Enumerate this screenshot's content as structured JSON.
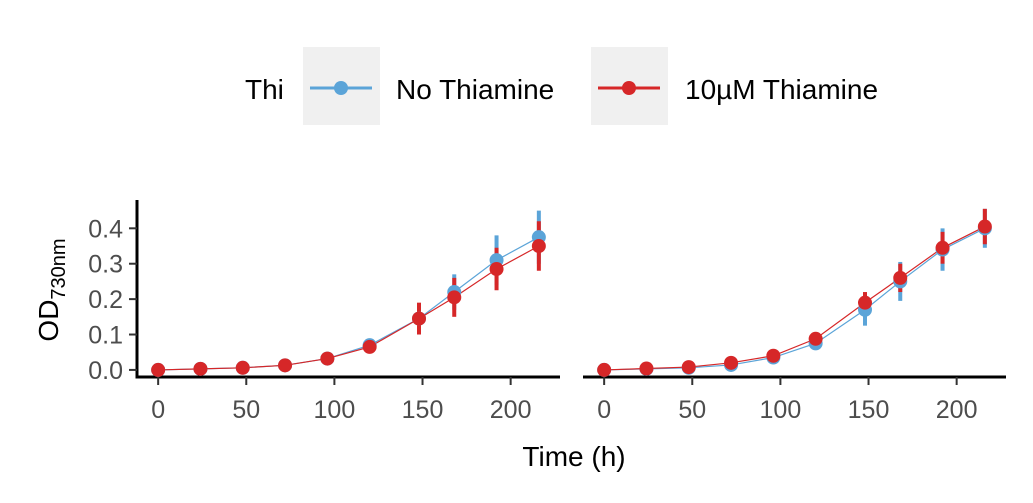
{
  "legend": {
    "title": "Thi",
    "entries": [
      {
        "label": "No Thiamine",
        "color": "#5BA4D8"
      },
      {
        "label": "10µM Thiamine",
        "color": "#D62728"
      }
    ]
  },
  "axes": {
    "xlabel": "Time (h)",
    "ylabel_main": "OD",
    "ylabel_sub": "730nm"
  },
  "chart_data": {
    "type": "line",
    "xlabel": "Time (h)",
    "ylabel": "OD730nm",
    "xlim": [
      -12,
      228
    ],
    "ylim": [
      -0.02,
      0.48
    ],
    "x_ticks": [
      0,
      50,
      100,
      150,
      200
    ],
    "y_ticks": [
      0.0,
      0.1,
      0.2,
      0.3,
      0.4
    ],
    "y_tick_labels": [
      "0.0",
      "0.1",
      "0.2",
      "0.3",
      "0.4"
    ],
    "grid": false,
    "legend_position": "top",
    "panels": [
      {
        "x": [
          0,
          24,
          48,
          72,
          96,
          120,
          148,
          168,
          192,
          216
        ],
        "series": [
          {
            "name": "No Thiamine",
            "color": "#5BA4D8",
            "values": [
              0.0,
              0.003,
              0.006,
              0.013,
              0.032,
              0.07,
              0.145,
              0.22,
              0.31,
              0.375
            ],
            "errors": [
              0.004,
              0.004,
              0.004,
              0.005,
              0.006,
              0.013,
              0.032,
              0.05,
              0.07,
              0.075
            ]
          },
          {
            "name": "10µM Thiamine",
            "color": "#D62728",
            "values": [
              0.0,
              0.003,
              0.006,
              0.013,
              0.032,
              0.065,
              0.145,
              0.205,
              0.285,
              0.35
            ],
            "errors": [
              0.004,
              0.004,
              0.004,
              0.005,
              0.006,
              0.01,
              0.045,
              0.055,
              0.06,
              0.07
            ]
          }
        ]
      },
      {
        "x": [
          0,
          24,
          48,
          72,
          96,
          120,
          148,
          168,
          192,
          216
        ],
        "series": [
          {
            "name": "No Thiamine",
            "color": "#5BA4D8",
            "values": [
              0.0,
              0.003,
              0.006,
              0.014,
              0.035,
              0.075,
              0.17,
              0.25,
              0.34,
              0.4
            ],
            "errors": [
              0.004,
              0.004,
              0.005,
              0.006,
              0.008,
              0.015,
              0.045,
              0.055,
              0.06,
              0.055
            ]
          },
          {
            "name": "10µM Thiamine",
            "color": "#D62728",
            "values": [
              0.0,
              0.004,
              0.008,
              0.02,
              0.04,
              0.088,
              0.19,
              0.26,
              0.345,
              0.405
            ],
            "errors": [
              0.004,
              0.004,
              0.005,
              0.006,
              0.008,
              0.012,
              0.03,
              0.04,
              0.045,
              0.05
            ]
          }
        ]
      }
    ]
  }
}
